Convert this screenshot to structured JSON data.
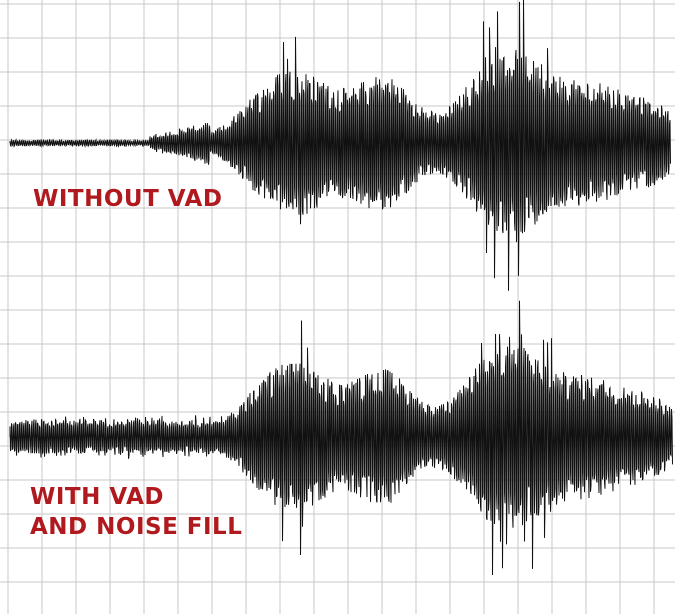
{
  "labels": {
    "top": "WITHOUT VAD",
    "bottom_line1": "WITH VAD",
    "bottom_line2": "AND NOISE FILL"
  },
  "colors": {
    "label": "#b0191e",
    "waveform": "#111111",
    "grid": "#c9c9c9",
    "background": "#ffffff"
  }
}
